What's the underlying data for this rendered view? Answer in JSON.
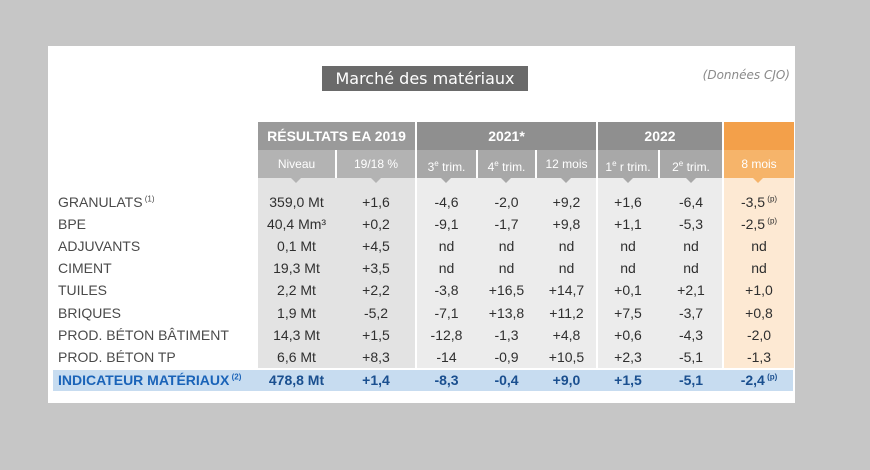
{
  "title": "Marché des matériaux",
  "source_note": "(Données CJO)",
  "headers": {
    "resultats": {
      "label": "RÉSULTATS EA 2019",
      "sub": [
        "Niveau",
        "19/18 %"
      ]
    },
    "y2021": {
      "label": "2021*",
      "sub": [
        "3e trim.",
        "4e trim.",
        "12 mois"
      ]
    },
    "y2022": {
      "label": "2022",
      "sub": [
        "1er trim.",
        "2e trim."
      ]
    },
    "months": {
      "sub": "8 mois"
    }
  },
  "rows": [
    {
      "label": "GRANULATS",
      "label_note": "(1)",
      "niveau": "359,0 Mt",
      "pct": "+1,6",
      "t3_2021": "-4,6",
      "t4_2021": "-2,0",
      "m12_2021": "+9,2",
      "t1_2022": "+1,6",
      "t2_2022": "-6,4",
      "m8_2022": "-3,5",
      "m8_note": "(p)"
    },
    {
      "label": "BPE",
      "label_note": "",
      "niveau": "40,4 Mm³",
      "pct": "+0,2",
      "t3_2021": "-9,1",
      "t4_2021": "-1,7",
      "m12_2021": "+9,8",
      "t1_2022": "+1,1",
      "t2_2022": "-5,3",
      "m8_2022": "-2,5",
      "m8_note": "(p)"
    },
    {
      "label": "ADJUVANTS",
      "label_note": "",
      "niveau": "0,1 Mt",
      "pct": "+4,5",
      "t3_2021": "nd",
      "t4_2021": "nd",
      "m12_2021": "nd",
      "t1_2022": "nd",
      "t2_2022": "nd",
      "m8_2022": "nd",
      "m8_note": ""
    },
    {
      "label": "CIMENT",
      "label_note": "",
      "niveau": "19,3 Mt",
      "pct": "+3,5",
      "t3_2021": "nd",
      "t4_2021": "nd",
      "m12_2021": "nd",
      "t1_2022": "nd",
      "t2_2022": "nd",
      "m8_2022": "nd",
      "m8_note": ""
    },
    {
      "label": "TUILES",
      "label_note": "",
      "niveau": "2,2 Mt",
      "pct": "+2,2",
      "t3_2021": "-3,8",
      "t4_2021": "+16,5",
      "m12_2021": "+14,7",
      "t1_2022": "+0,1",
      "t2_2022": "+2,1",
      "m8_2022": "+1,0",
      "m8_note": ""
    },
    {
      "label": "BRIQUES",
      "label_note": "",
      "niveau": "1,9 Mt",
      "pct": "-5,2",
      "t3_2021": "-7,1",
      "t4_2021": "+13,8",
      "m12_2021": "+11,2",
      "t1_2022": "+7,5",
      "t2_2022": "-3,7",
      "m8_2022": "+0,8",
      "m8_note": ""
    },
    {
      "label": "PROD. BÉTON BÂTIMENT",
      "label_note": "",
      "niveau": "14,3 Mt",
      "pct": "+1,5",
      "t3_2021": "-12,8",
      "t4_2021": "-1,3",
      "m12_2021": "+4,8",
      "t1_2022": "+0,6",
      "t2_2022": "-4,3",
      "m8_2022": "-2,0",
      "m8_note": ""
    },
    {
      "label": "PROD. BÉTON TP",
      "label_note": "",
      "niveau": "6,6 Mt",
      "pct": "+8,3",
      "t3_2021": "-14",
      "t4_2021": "-0,9",
      "m12_2021": "+10,5",
      "t1_2022": "+2,3",
      "t2_2022": "-5,1",
      "m8_2022": "-1,3",
      "m8_note": ""
    }
  ],
  "indicator": {
    "label": "INDICATEUR MATÉRIAUX",
    "label_note": "(2)",
    "niveau": "478,8 Mt",
    "pct": "+1,4",
    "t3_2021": "-8,3",
    "t4_2021": "-0,4",
    "m12_2021": "+9,0",
    "t1_2022": "+1,5",
    "t2_2022": "-5,1",
    "m8_2022": "-2,4",
    "m8_note": "(p)"
  },
  "colors": {
    "highlight_band": "#c7dcf0",
    "highlight_text": "#1a63b8",
    "accent_orange": "#f3a04a",
    "header_grey": "#8f8f8f"
  }
}
